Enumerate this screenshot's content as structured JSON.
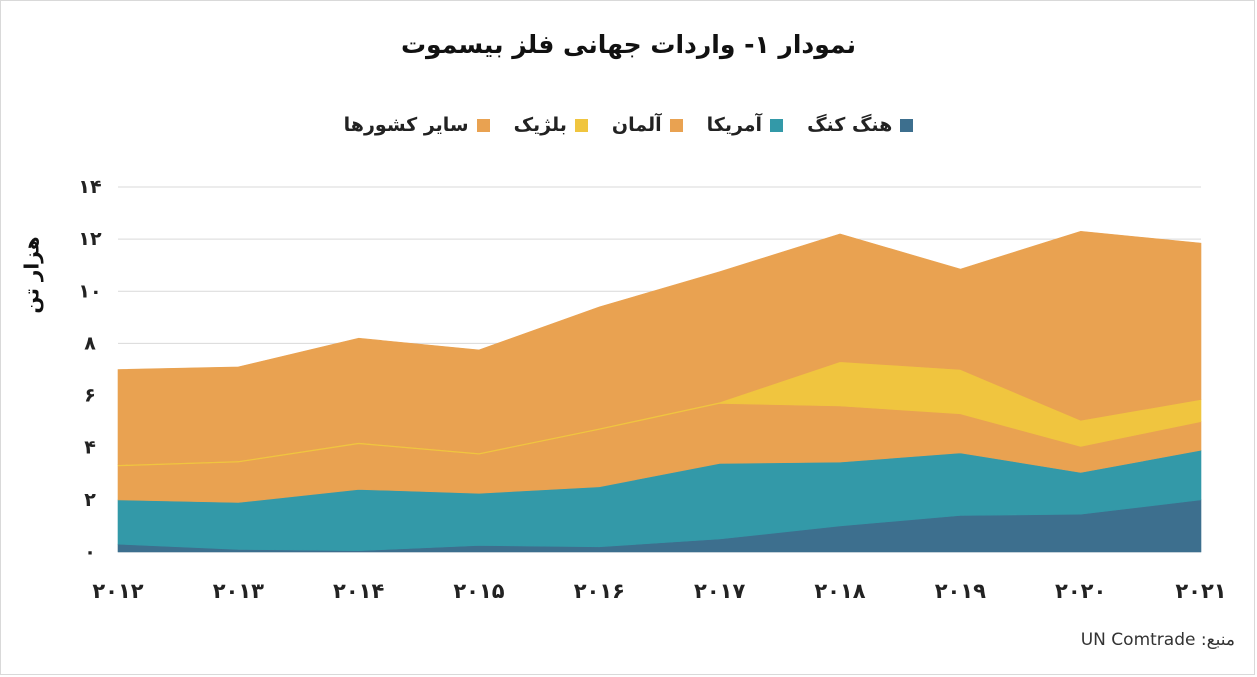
{
  "chart_data": {
    "type": "area",
    "stacked": true,
    "title": "نمودار ۱- واردات جهانی فلز بیسموت",
    "ylabel": "هزار تن",
    "x": [
      "2012",
      "2013",
      "2014",
      "2015",
      "2016",
      "2017",
      "2018",
      "2019",
      "2020",
      "2021"
    ],
    "x_tick_labels": [
      "۲۰۱۲",
      "۲۰۱۳",
      "۲۰۱۴",
      "۲۰۱۵",
      "۲۰۱۶",
      "۲۰۱۷",
      "۲۰۱۸",
      "۲۰۱۹",
      "۲۰۲۰",
      "۲۰۲۱"
    ],
    "ylim": [
      0,
      14
    ],
    "y_ticks": [
      0,
      2,
      4,
      6,
      8,
      10,
      12,
      14
    ],
    "y_tick_labels": [
      "۰",
      "۲",
      "۴",
      "۶",
      "۸",
      "۱۰",
      "۱۲",
      "۱۴"
    ],
    "grid": true,
    "legend_position": "top",
    "series": [
      {
        "name": "هنگ کنگ",
        "color": "#3d6f8e",
        "values": [
          0.3,
          0.1,
          0.05,
          0.25,
          0.2,
          0.5,
          1.0,
          1.4,
          1.45,
          2.0
        ]
      },
      {
        "name": "آمریکا",
        "color": "#3399a8",
        "values": [
          1.7,
          1.8,
          2.35,
          2.0,
          2.3,
          2.9,
          2.45,
          2.4,
          1.6,
          1.9
        ]
      },
      {
        "name": "آلمان",
        "color": "#e9a251",
        "values": [
          1.3,
          1.55,
          1.75,
          1.5,
          2.2,
          2.3,
          2.15,
          1.5,
          1.0,
          1.1
        ]
      },
      {
        "name": "بلژیک",
        "color": "#f0c53f",
        "values": [
          0.05,
          0.05,
          0.05,
          0.05,
          0.05,
          0.05,
          1.7,
          1.7,
          1.0,
          0.85
        ]
      },
      {
        "name": "سایر کشورها",
        "color": "#e9a251",
        "values": [
          3.65,
          3.6,
          4.0,
          3.95,
          4.65,
          5.0,
          4.9,
          3.85,
          7.25,
          6.0
        ]
      }
    ]
  },
  "source_text": "منبع: UN Comtrade"
}
